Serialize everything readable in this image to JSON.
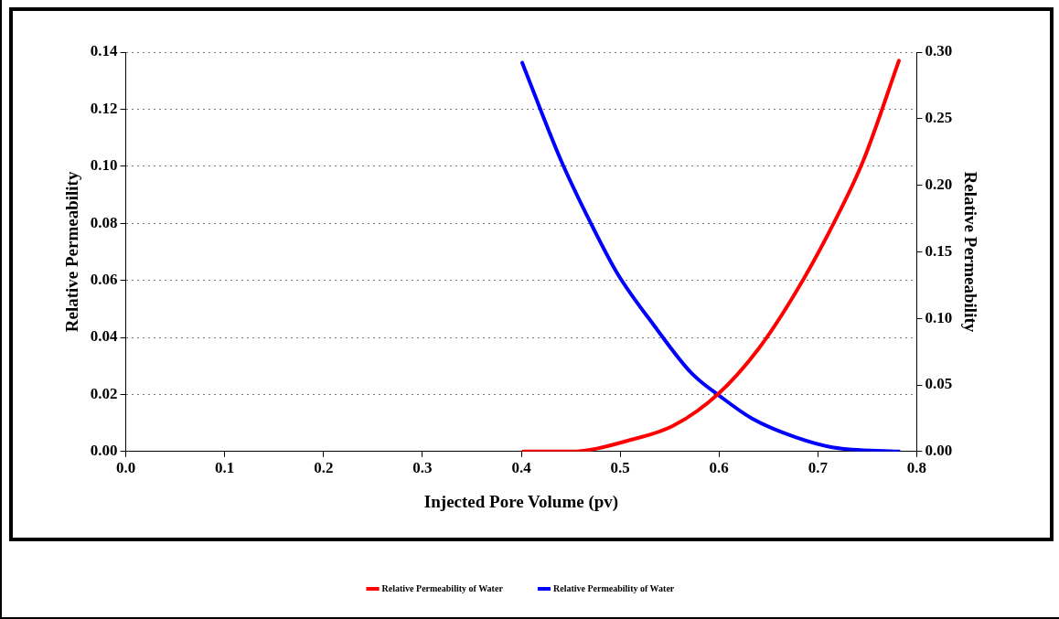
{
  "chart_data": {
    "type": "line",
    "xlabel": "Injected Pore Volume (pv)",
    "ylabel": "Relative Permeability",
    "y2label": "Relative Permeability",
    "xlim": [
      0,
      0.8
    ],
    "xticks": [
      {
        "value": 0,
        "label": "0.0"
      },
      0.1,
      0.2,
      0.3,
      0.4,
      0.5,
      0.6,
      0.7,
      0.8
    ],
    "ylim": [
      0,
      0.14
    ],
    "yticks": [
      {
        "value": 0,
        "label": "0.00"
      },
      0.02,
      0.04,
      0.06,
      0.08,
      {
        "value": 0.1,
        "label": "0.10"
      },
      0.12,
      0.14
    ],
    "y2lim": [
      0,
      0.3
    ],
    "y2ticks": [
      {
        "value": 0,
        "label": "0.00"
      },
      0.05,
      {
        "value": 0.1,
        "label": "0.10"
      },
      0.15,
      {
        "value": 0.2,
        "label": "0.20"
      },
      0.25,
      {
        "value": 0.3,
        "label": "0.30"
      }
    ],
    "grid": "y",
    "legend": "bottom",
    "line_style": "solid",
    "marker": "none",
    "series": [
      {
        "name": "Relative Permeability of Water",
        "color": "#ff0000",
        "x": [
          0.402,
          0.451,
          0.512,
          0.553,
          0.598,
          0.64,
          0.678,
          0.716,
          0.746,
          0.782
        ],
        "values": [
          0,
          0,
          0.0042,
          0.0089,
          0.0198,
          0.036,
          0.056,
          0.08,
          0.102,
          0.137
        ]
      },
      {
        "name": "Relative Permeability of Water",
        "color": "#0000ff",
        "axis": "y2",
        "x": [
          0.401,
          0.44,
          0.47,
          0.497,
          0.535,
          0.572,
          0.602,
          0.633,
          0.678,
          0.716,
          0.782
        ],
        "values": [
          0.292,
          0.219,
          0.172,
          0.134,
          0.094,
          0.059,
          0.041,
          0.025,
          0.0106,
          0.003,
          0
        ]
      }
    ]
  }
}
